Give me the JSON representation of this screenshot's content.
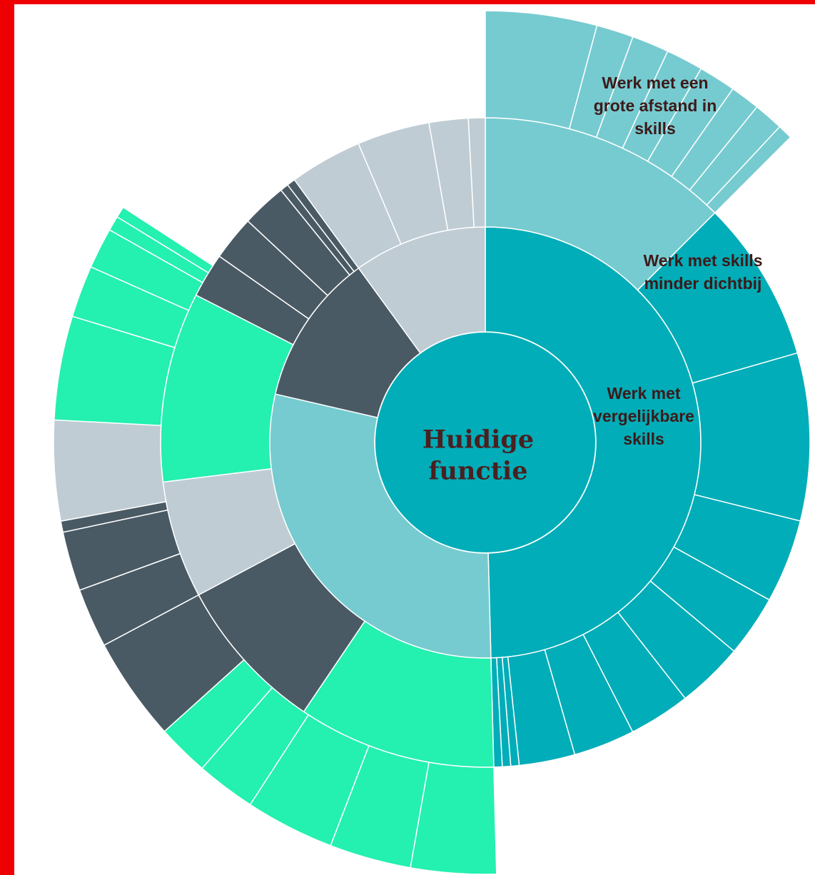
{
  "chart_data": {
    "type": "sunburst",
    "root": {
      "label_lines": [
        "Huidige",
        "functie"
      ],
      "color": "#00adb8"
    },
    "rings": [
      {
        "level": 1,
        "segments": [
          {
            "start": 0,
            "end": 178.5,
            "color": "#00adb8",
            "label_lines": [
              "Werk met",
              "vergelijkbare",
              "skills"
            ]
          },
          {
            "start": 178.5,
            "end": 283,
            "color": "#76cbd0"
          },
          {
            "start": 283,
            "end": 324,
            "color": "#4a5a64"
          },
          {
            "start": 324,
            "end": 360,
            "color": "#bfccd4"
          }
        ]
      },
      {
        "level": 2,
        "segments": [
          {
            "start": 0,
            "end": 45,
            "color": "#76cbd0"
          },
          {
            "start": 45,
            "end": 74,
            "color": "#00adb8",
            "label_lines": [
              "Werk met skills",
              "minder dichtbij"
            ]
          },
          {
            "start": 74,
            "end": 104,
            "color": "#00adb8"
          },
          {
            "start": 104,
            "end": 119,
            "color": "#00adb8"
          },
          {
            "start": 119,
            "end": 130,
            "color": "#00adb8"
          },
          {
            "start": 130,
            "end": 142,
            "color": "#00adb8"
          },
          {
            "start": 142,
            "end": 153,
            "color": "#00adb8"
          },
          {
            "start": 153,
            "end": 164,
            "color": "#00adb8"
          },
          {
            "start": 164,
            "end": 174,
            "color": "#00adb8"
          },
          {
            "start": 174,
            "end": 175.5,
            "color": "#00adb8"
          },
          {
            "start": 175.5,
            "end": 177,
            "color": "#00adb8"
          },
          {
            "start": 177,
            "end": 178.5,
            "color": "#00adb8"
          },
          {
            "start": 178.5,
            "end": 214,
            "color": "#24f0b0"
          },
          {
            "start": 214,
            "end": 242,
            "color": "#4a5a64"
          },
          {
            "start": 242,
            "end": 263,
            "color": "#bfccd4"
          },
          {
            "start": 263,
            "end": 297,
            "color": "#24f0b0"
          },
          {
            "start": 297,
            "end": 305,
            "color": "#4a5a64"
          },
          {
            "start": 305,
            "end": 313,
            "color": "#4a5a64"
          },
          {
            "start": 313,
            "end": 321,
            "color": "#4a5a64"
          },
          {
            "start": 321,
            "end": 322.5,
            "color": "#4a5a64"
          },
          {
            "start": 322.5,
            "end": 324,
            "color": "#4a5a64"
          },
          {
            "start": 324,
            "end": 337,
            "color": "#bfccd4"
          },
          {
            "start": 337,
            "end": 350,
            "color": "#bfccd4"
          },
          {
            "start": 350,
            "end": 357,
            "color": "#bfccd4"
          },
          {
            "start": 357,
            "end": 360,
            "color": "#bfccd4"
          }
        ]
      },
      {
        "level": 3,
        "segments": [
          {
            "start": 0,
            "end": 15,
            "color": "#76cbd0",
            "label_lines": [
              "Werk met een",
              "grote afstand in",
              "skills"
            ]
          },
          {
            "start": 15,
            "end": 20,
            "color": "#76cbd0"
          },
          {
            "start": 20,
            "end": 25,
            "color": "#76cbd0"
          },
          {
            "start": 25,
            "end": 30,
            "color": "#76cbd0"
          },
          {
            "start": 30,
            "end": 35,
            "color": "#76cbd0"
          },
          {
            "start": 35,
            "end": 39,
            "color": "#76cbd0"
          },
          {
            "start": 39,
            "end": 43,
            "color": "#76cbd0"
          },
          {
            "start": 43,
            "end": 45,
            "color": "#76cbd0"
          },
          {
            "start": 178.5,
            "end": 190,
            "color": "#24f0b0"
          },
          {
            "start": 190,
            "end": 201,
            "color": "#24f0b0"
          },
          {
            "start": 201,
            "end": 213,
            "color": "#24f0b0"
          },
          {
            "start": 213,
            "end": 221,
            "color": "#24f0b0"
          },
          {
            "start": 221,
            "end": 228,
            "color": "#24f0b0"
          },
          {
            "start": 228,
            "end": 242,
            "color": "#4a5a64"
          },
          {
            "start": 242,
            "end": 250,
            "color": "#4a5a64"
          },
          {
            "start": 250,
            "end": 258,
            "color": "#4a5a64"
          },
          {
            "start": 258,
            "end": 259.5,
            "color": "#4a5a64"
          },
          {
            "start": 259.5,
            "end": 273,
            "color": "#bfccd4"
          },
          {
            "start": 273,
            "end": 287,
            "color": "#24f0b0"
          },
          {
            "start": 287,
            "end": 294,
            "color": "#24f0b0"
          },
          {
            "start": 294,
            "end": 299.5,
            "color": "#24f0b0"
          },
          {
            "start": 299.5,
            "end": 301.5,
            "color": "#24f0b0"
          },
          {
            "start": 301.5,
            "end": 303,
            "color": "#24f0b0"
          }
        ]
      }
    ]
  }
}
